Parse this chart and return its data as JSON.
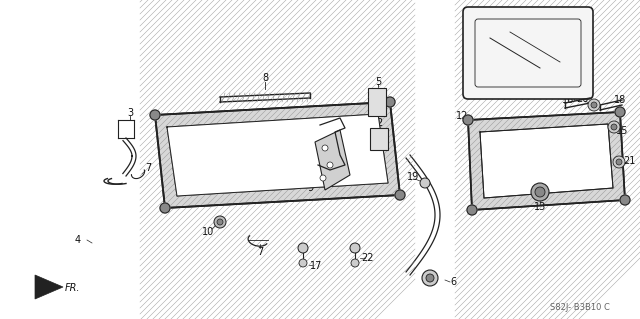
{
  "bg_color": "#ffffff",
  "line_color": "#222222",
  "diagram_code": "S82J- B3B10 C",
  "fig_width": 6.4,
  "fig_height": 3.19,
  "dpi": 100
}
